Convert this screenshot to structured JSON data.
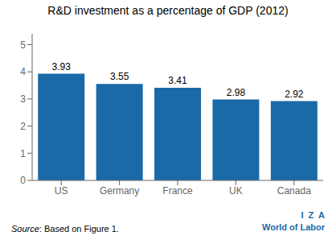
{
  "chart_data": {
    "type": "bar",
    "title": "R&D investment as a percentage of GDP (2012)",
    "categories": [
      "US",
      "Germany",
      "France",
      "UK",
      "Canada"
    ],
    "values": [
      3.93,
      3.55,
      3.41,
      2.98,
      2.92
    ],
    "color": "#1a6aa8",
    "ylim": [
      0,
      5.4
    ],
    "yticks": [
      0,
      1,
      2,
      3,
      4,
      5
    ],
    "grid": false,
    "data_labels": true,
    "annotations": [
      "Source",
      ": Based on Figure 1.",
      "I  Z  A",
      "World of Labor"
    ]
  }
}
